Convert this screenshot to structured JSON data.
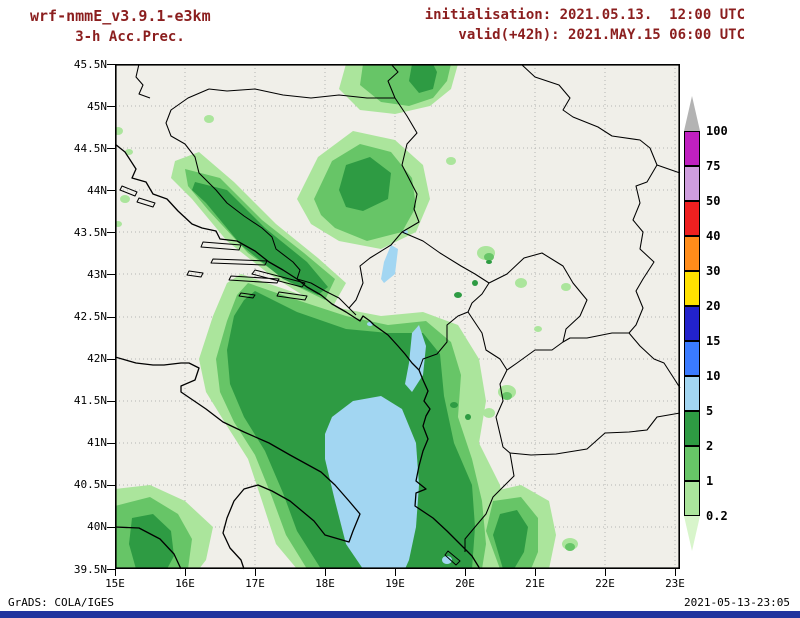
{
  "header": {
    "model_title": "wrf-nmmE_v3.9.1-e3km",
    "product_subtitle": "3-h Acc.Prec.",
    "init_line": "initialisation: 2021.05.13.  12:00 UTC",
    "valid_line": "valid(+42h): 2021.MAY.15 06:00 UTC"
  },
  "footer": {
    "credit": "GrADS: COLA/IGES",
    "generated": "2021-05-13-23:05"
  },
  "axes": {
    "lat_ticks": [
      "45.5N",
      "45N",
      "44.5N",
      "44N",
      "43.5N",
      "43N",
      "42.5N",
      "42N",
      "41.5N",
      "41N",
      "40.5N",
      "40N",
      "39.5N"
    ],
    "lon_ticks": [
      "15E",
      "16E",
      "17E",
      "18E",
      "19E",
      "20E",
      "21E",
      "22E",
      "23E"
    ]
  },
  "colorbar": {
    "levels": [
      "100",
      "75",
      "50",
      "40",
      "30",
      "20",
      "15",
      "10",
      "5",
      "2",
      "1",
      "0.2"
    ],
    "colors": [
      "#b3b3b3",
      "#c020c0",
      "#cf9ede",
      "#ef2020",
      "#ff8c1a",
      "#ffe100",
      "#2222cc",
      "#3a7bff",
      "#a2d6f2",
      "#2e9b43",
      "#67c567",
      "#abe59c",
      "#d8f5cb"
    ]
  },
  "colors": {
    "page_background": "#ffffff",
    "map_background": "#f0efe9",
    "outline": "#000000",
    "grid": "#b4b4b4",
    "header_text": "#8b1e1e",
    "bottom_bar": "#21339e"
  },
  "chart_data": {
    "type": "heatmap",
    "title": "wrf-nmmE_v3.9.1-e3km 3-h Acc.Prec.",
    "x_axis_ticks": [
      "15E",
      "16E",
      "17E",
      "18E",
      "19E",
      "20E",
      "21E",
      "22E",
      "23E"
    ],
    "y_axis_ticks": [
      "39.5N",
      "40N",
      "40.5N",
      "41N",
      "41.5N",
      "42N",
      "42.5N",
      "43N",
      "43.5N",
      "44N",
      "44.5N",
      "45N",
      "45.5N"
    ],
    "shading_levels_mm": [
      0.2,
      1,
      2,
      5,
      10,
      15,
      20,
      30,
      40,
      50,
      75,
      100
    ],
    "legend_position": "right",
    "grid": "dotted"
  }
}
